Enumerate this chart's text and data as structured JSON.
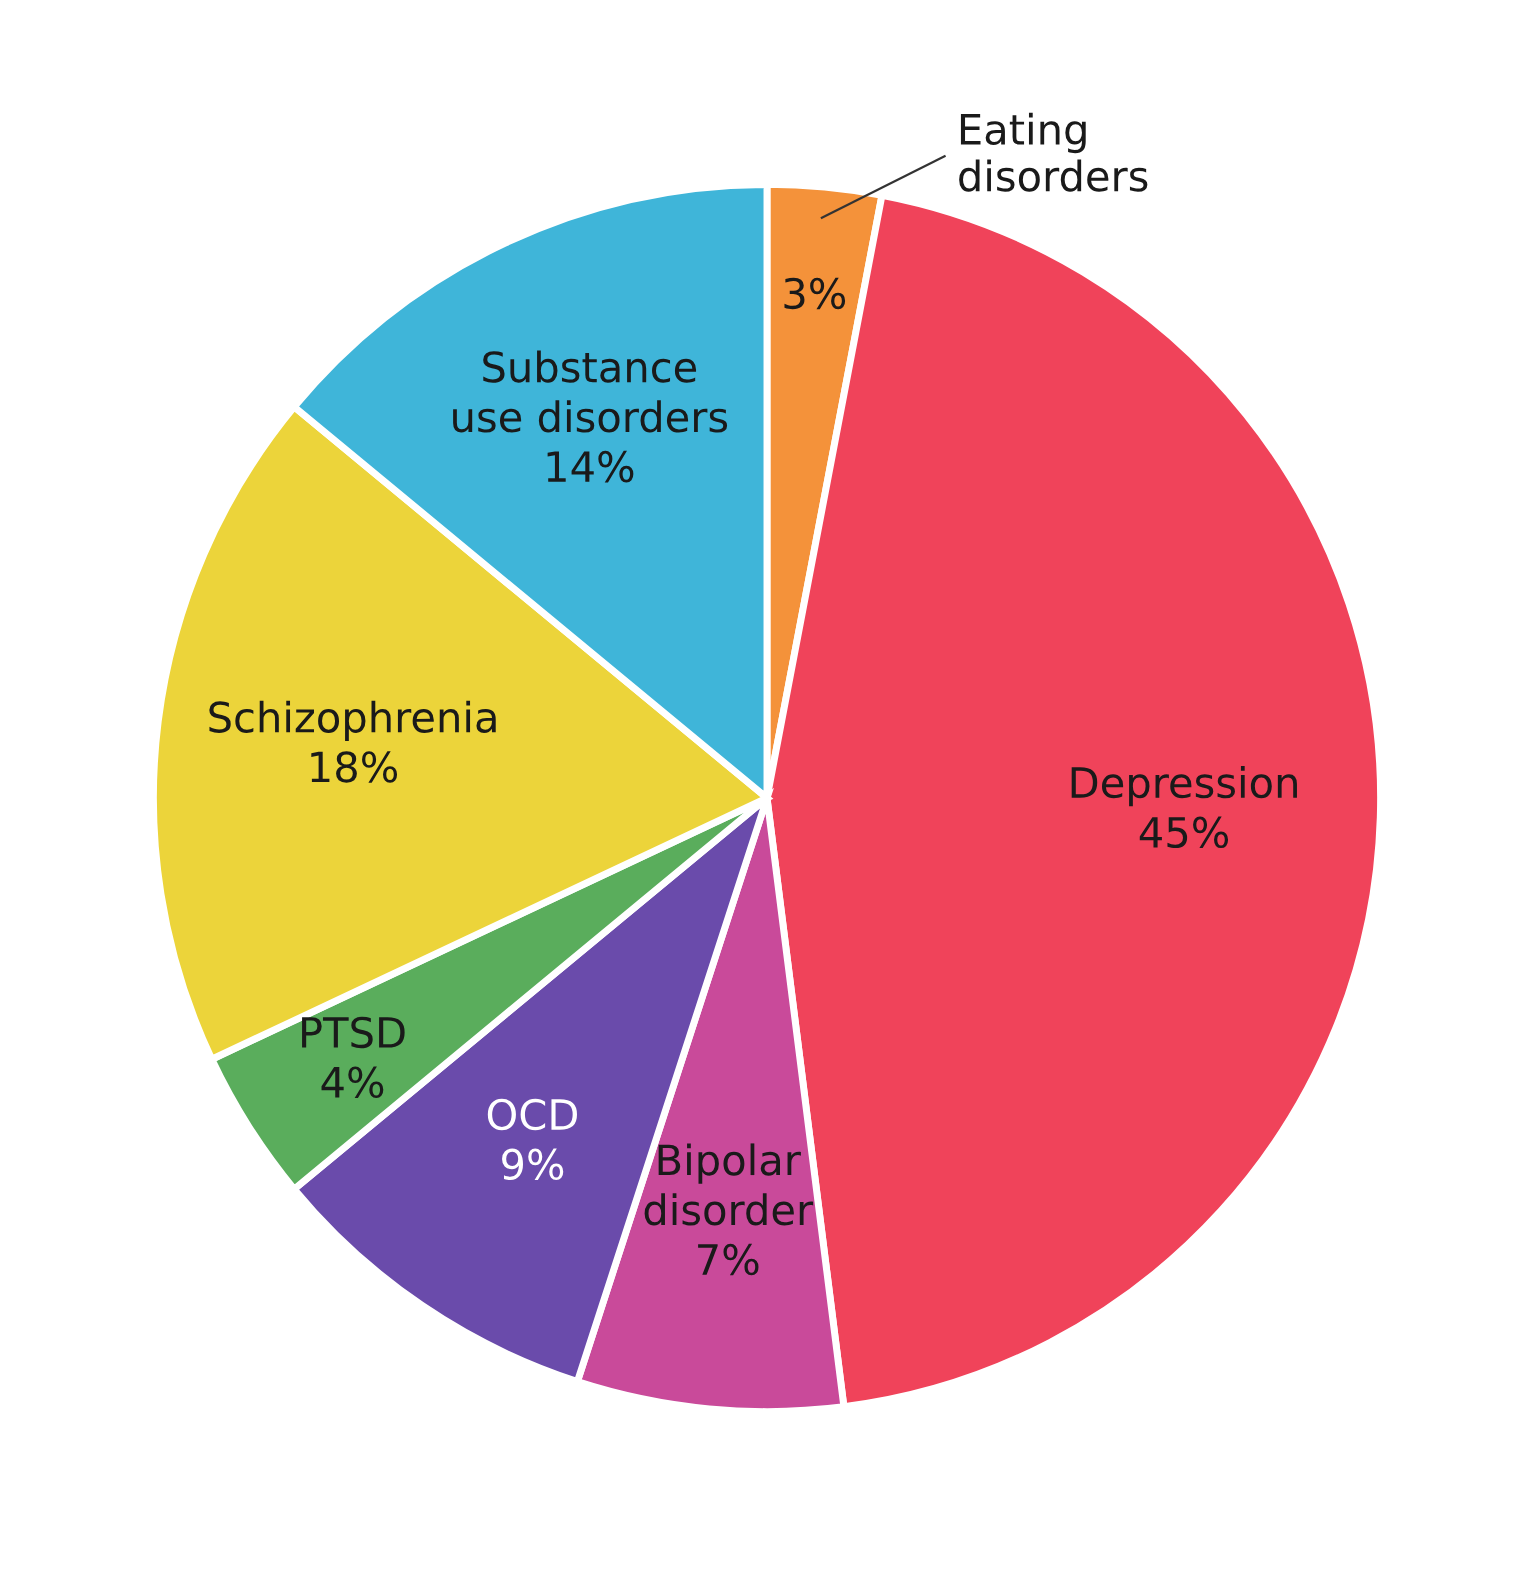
{
  "chart_data": {
    "type": "pie",
    "categories": [
      "Eating\ndisorders",
      "Depression",
      "Bipolar\ndisorder",
      "OCD",
      "PTSD",
      "Schizophrenia",
      "Substance\nuse disorders"
    ],
    "values": [
      3,
      45,
      7,
      9,
      4,
      18,
      14
    ],
    "value_labels": [
      "3%",
      "45%",
      "7%",
      "9%",
      "4%",
      "18%",
      "14%"
    ],
    "colors": [
      "#f4923a",
      "#f0435a",
      "#c94a9a",
      "#6a4bab",
      "#5aad5c",
      "#ecd43a",
      "#3fb5d9"
    ],
    "legend": false
  }
}
